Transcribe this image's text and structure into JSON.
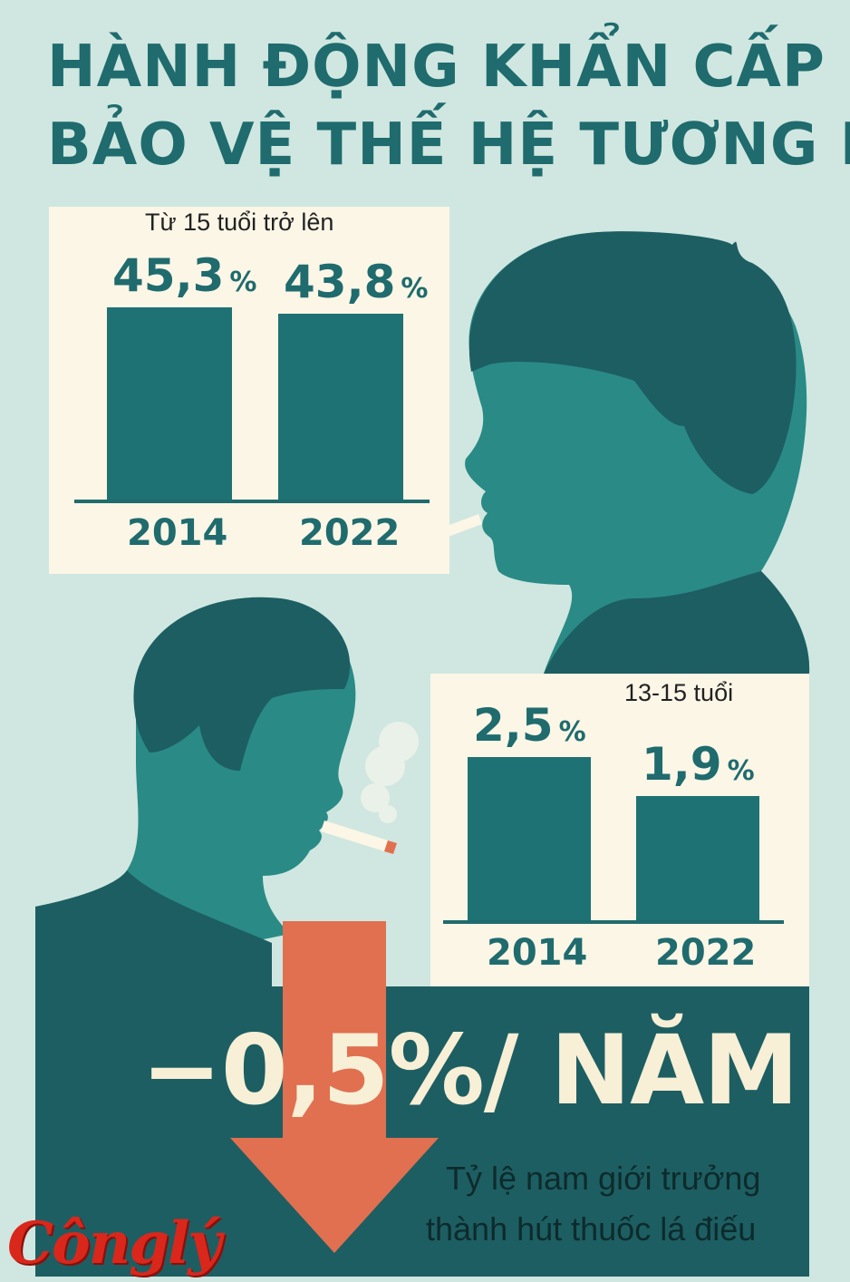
{
  "title": {
    "line1": "HÀNH ĐỘNG KHẨN CẤP",
    "line2": "BẢO VỆ THẾ HỆ TƯƠNG LAI"
  },
  "colors": {
    "background": "#cfe7e0",
    "title": "#1f6b6e",
    "panel": "#fbf6e6",
    "bar": "#1f7273",
    "silhouette": "#2a8a86",
    "hair": "#1d5e62",
    "arrow": "#e07050",
    "band": "#1d5e62",
    "stat_text": "#f7efd6",
    "logo": "#d9271c"
  },
  "chart_data": [
    {
      "type": "bar",
      "subtitle": "Từ 15 tuổi trở lên",
      "categories": [
        "2014",
        "2022"
      ],
      "values": [
        45.3,
        43.8
      ],
      "value_labels": [
        "45,3",
        "43,8"
      ],
      "unit": "%"
    },
    {
      "type": "bar",
      "subtitle": "13-15 tuổi",
      "categories": [
        "2014",
        "2022"
      ],
      "values": [
        2.5,
        1.9
      ],
      "value_labels": [
        "2,5",
        "1,9"
      ],
      "unit": "%"
    }
  ],
  "highlight": {
    "stat": "−0,5%/ NĂM",
    "caption_line1": "Tỷ lệ nam giới trưởng",
    "caption_line2": "thành hút thuốc lá điếu"
  },
  "logo": {
    "text": "Cônglý"
  },
  "icons": [
    "smoker-silhouette-icon",
    "cigarette-icon",
    "smoke-icon",
    "down-arrow-icon"
  ]
}
